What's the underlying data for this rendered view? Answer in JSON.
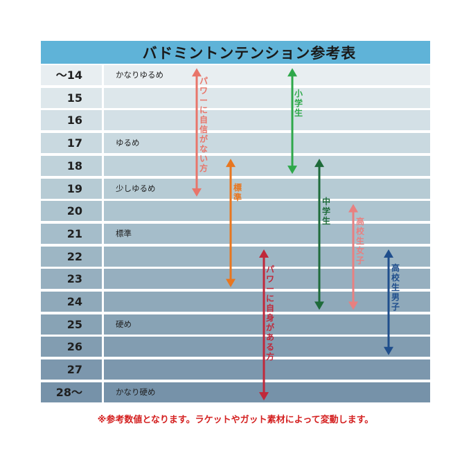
{
  "title": "バドミントンテンション参考表",
  "rows": [
    {
      "num": "～14",
      "label": "かなりゆるめ"
    },
    {
      "num": "15",
      "label": ""
    },
    {
      "num": "16",
      "label": ""
    },
    {
      "num": "17",
      "label": "ゆるめ"
    },
    {
      "num": "18",
      "label": ""
    },
    {
      "num": "19",
      "label": "少しゆるめ"
    },
    {
      "num": "20",
      "label": ""
    },
    {
      "num": "21",
      "label": "標準"
    },
    {
      "num": "22",
      "label": ""
    },
    {
      "num": "23",
      "label": ""
    },
    {
      "num": "24",
      "label": ""
    },
    {
      "num": "25",
      "label": "硬め"
    },
    {
      "num": "26",
      "label": ""
    },
    {
      "num": "27",
      "label": ""
    },
    {
      "num": "28～",
      "label": "かなり硬め"
    }
  ],
  "row_colors": [
    "#e8eef1",
    "#dde7eb",
    "#d3e0e6",
    "#c9d9e0",
    "#bfd2da",
    "#b6cbd4",
    "#adc4cf",
    "#a5bdca",
    "#9db6c4",
    "#96afbf",
    "#8fa9ba",
    "#88a3b5",
    "#829db1",
    "#7c97ad",
    "#7692a9"
  ],
  "ranges": [
    {
      "label": "パワーに自信がない方",
      "from": 0,
      "to": 5,
      "color": "#e8756a"
    },
    {
      "label": "小学生",
      "from": 0,
      "to": 4,
      "color": "#2ea84a"
    },
    {
      "label": "標準",
      "from": 4,
      "to": 9,
      "color": "#e8761f"
    },
    {
      "label": "中学生",
      "from": 4,
      "to": 10,
      "color": "#1e6b3a"
    },
    {
      "label": "高校生女子",
      "from": 6,
      "to": 10,
      "color": "#e88080"
    },
    {
      "label": "パワーに自身がある方",
      "from": 8,
      "to": 14,
      "color": "#c0283a"
    },
    {
      "label": "高校生男子",
      "from": 8,
      "to": 12,
      "color": "#1f4e8c"
    }
  ],
  "footnote": "※参考数値となります。ラケットやガット素材によって変動します。"
}
